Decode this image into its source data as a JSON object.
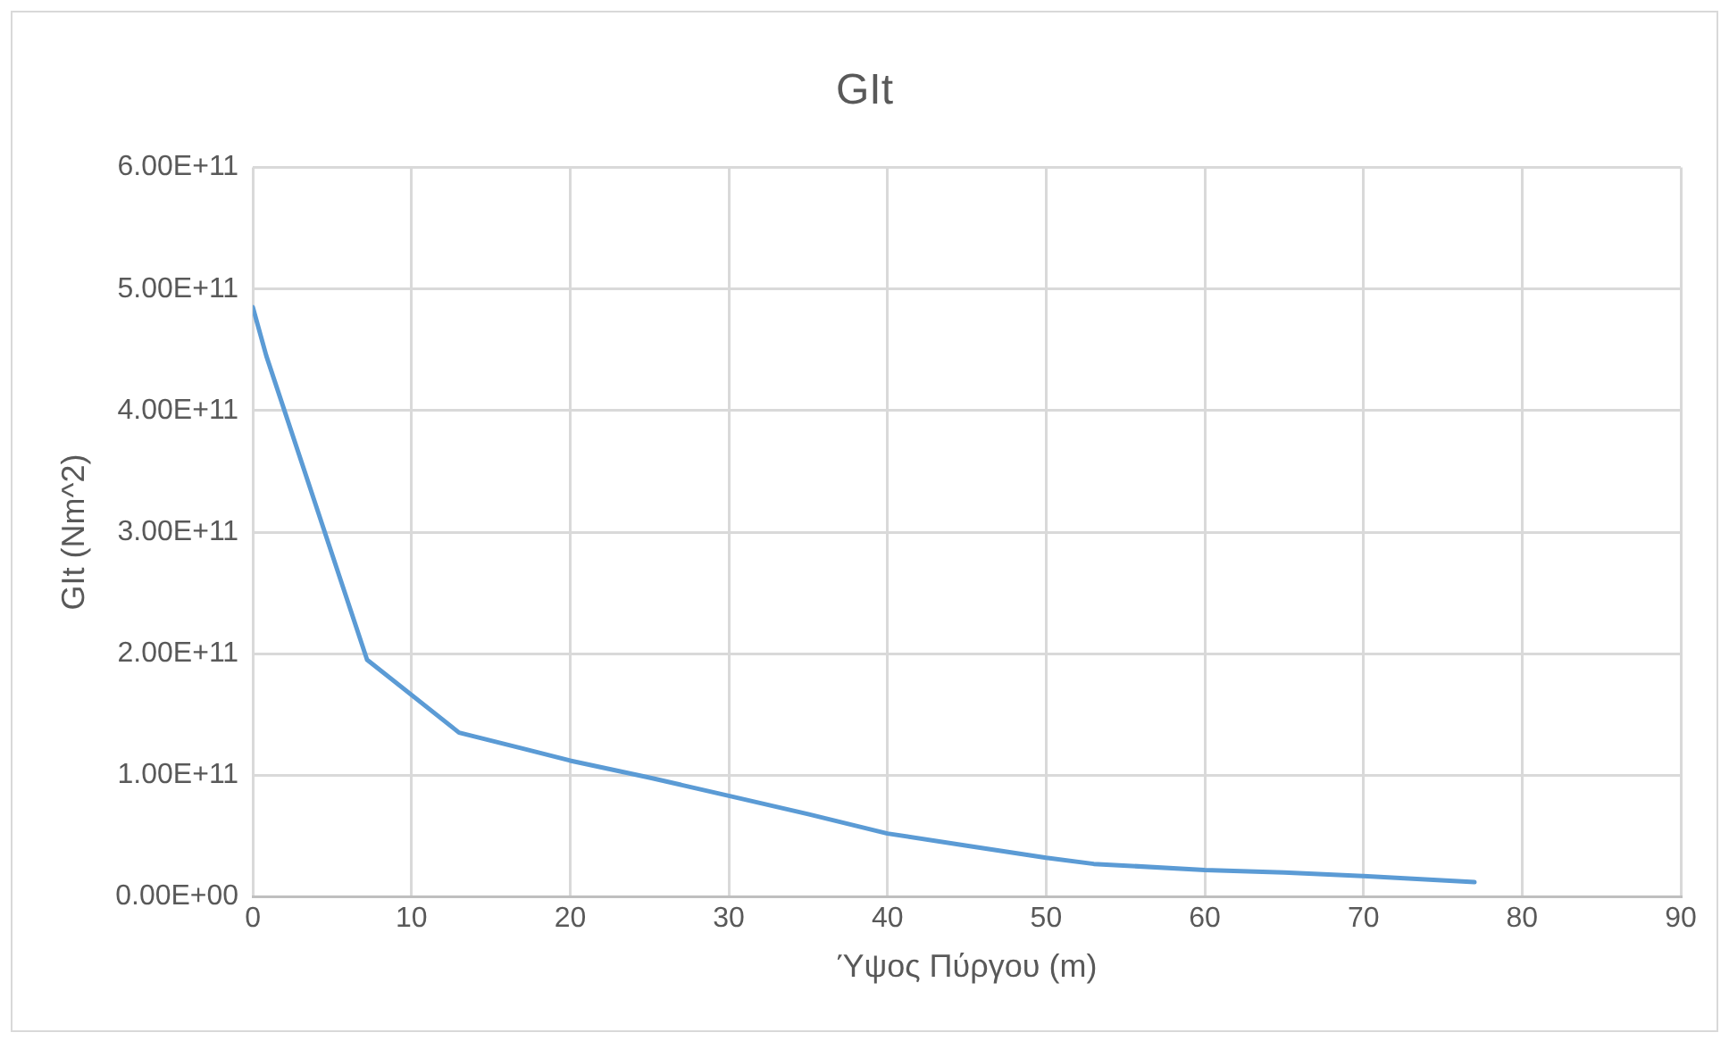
{
  "chart_data": {
    "type": "line",
    "title": "GIt",
    "xlabel": "Ύψος Πύργου (m)",
    "ylabel": "GIt (Nm^2)",
    "x": [
      0,
      0.85,
      7.2,
      13,
      17,
      20,
      25,
      30,
      35,
      40,
      45,
      50,
      53,
      60,
      65,
      70,
      77
    ],
    "series": [
      {
        "color": "#5b9bd5",
        "values": [
          485000000000.0,
          445000000000.0,
          195000000000.0,
          135000000000.0,
          122000000000.0,
          112000000000.0,
          98000000000.0,
          83000000000.0,
          68000000000.0,
          52000000000.0,
          42000000000.0,
          32000000000.0,
          27000000000.0,
          22000000000.0,
          20000000000.0,
          17000000000.0,
          12000000000.0
        ]
      }
    ],
    "xlim": [
      0,
      90
    ],
    "xticks": [
      0,
      10,
      20,
      30,
      40,
      50,
      60,
      70,
      80,
      90
    ],
    "ylim": [
      0,
      600000000000
    ],
    "yticks": [
      {
        "value": 0,
        "label": "0.00E+00"
      },
      {
        "value": 100000000000,
        "label": "1.00E+11"
      },
      {
        "value": 200000000000,
        "label": "2.00E+11"
      },
      {
        "value": 300000000000,
        "label": "3.00E+11"
      },
      {
        "value": 400000000000,
        "label": "4.00E+11"
      },
      {
        "value": 500000000000,
        "label": "5.00E+11"
      },
      {
        "value": 600000000000,
        "label": "6.00E+11"
      }
    ],
    "grid": true,
    "legend": false,
    "marker": "none",
    "line_style": "solid"
  }
}
